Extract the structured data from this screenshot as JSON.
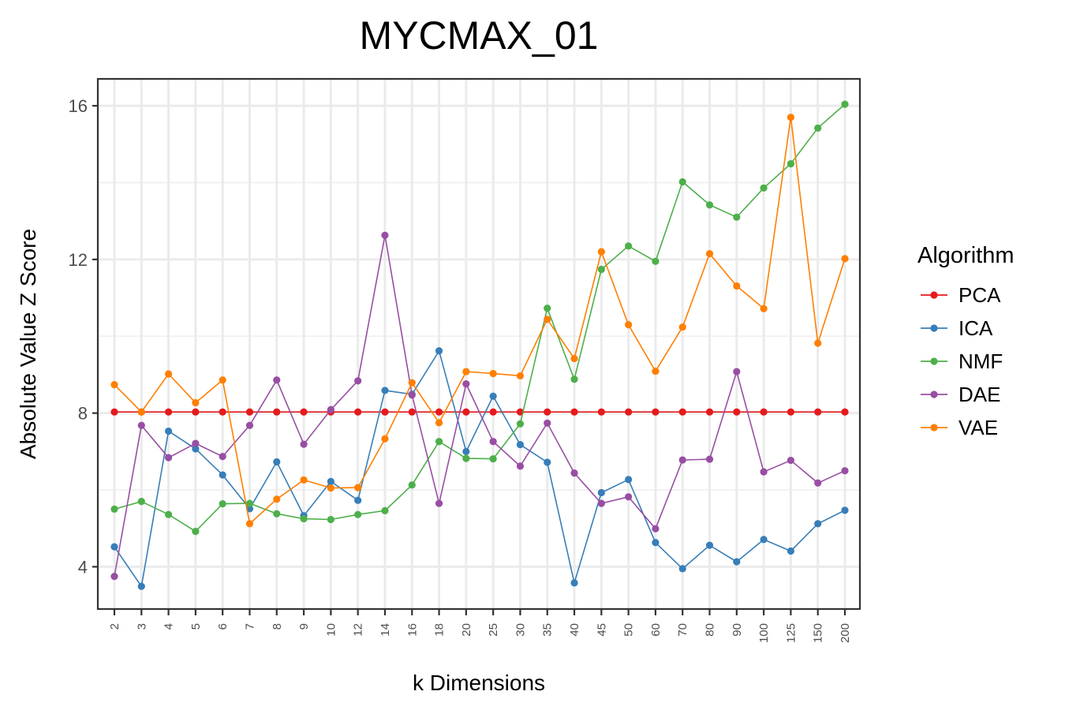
{
  "chart_data": {
    "type": "line",
    "title": "MYCMAX_01",
    "xlabel": "k Dimensions",
    "ylabel": "Absolute Value Z Score",
    "categories": [
      "2",
      "3",
      "4",
      "5",
      "6",
      "7",
      "8",
      "9",
      "10",
      "12",
      "14",
      "16",
      "18",
      "20",
      "25",
      "30",
      "35",
      "40",
      "45",
      "50",
      "60",
      "70",
      "80",
      "90",
      "100",
      "125",
      "150",
      "200"
    ],
    "ylim": [
      2.9,
      16.7
    ],
    "yticks": [
      4,
      8,
      12,
      16
    ],
    "grid": true,
    "legend": {
      "title": "Algorithm",
      "position": "right"
    },
    "series": [
      {
        "name": "PCA",
        "color": "#E41A1C",
        "values": [
          8.03,
          8.03,
          8.03,
          8.03,
          8.03,
          8.03,
          8.03,
          8.03,
          8.03,
          8.03,
          8.03,
          8.03,
          8.03,
          8.03,
          8.03,
          8.03,
          8.03,
          8.03,
          8.03,
          8.03,
          8.03,
          8.03,
          8.03,
          8.03,
          8.03,
          8.03,
          8.03,
          8.03
        ]
      },
      {
        "name": "ICA",
        "color": "#377EB8",
        "values": [
          4.52,
          3.49,
          7.53,
          7.07,
          6.39,
          5.51,
          6.73,
          5.33,
          6.22,
          5.73,
          8.59,
          8.49,
          9.62,
          7.0,
          8.44,
          7.18,
          6.72,
          3.58,
          5.93,
          6.27,
          4.63,
          3.95,
          4.56,
          4.13,
          4.71,
          4.41,
          5.12,
          5.47
        ]
      },
      {
        "name": "NMF",
        "color": "#4DAF4A",
        "values": [
          5.5,
          5.7,
          5.36,
          4.92,
          5.64,
          5.65,
          5.38,
          5.25,
          5.23,
          5.36,
          5.46,
          6.13,
          7.26,
          6.82,
          6.81,
          7.72,
          10.73,
          8.88,
          11.74,
          12.35,
          11.95,
          14.02,
          13.42,
          13.1,
          13.86,
          14.49,
          15.42,
          16.04
        ]
      },
      {
        "name": "DAE",
        "color": "#984EA3",
        "values": [
          3.75,
          7.68,
          6.84,
          7.21,
          6.87,
          7.68,
          8.86,
          7.19,
          8.09,
          8.84,
          12.63,
          8.47,
          5.65,
          8.76,
          7.26,
          6.62,
          7.74,
          6.44,
          5.65,
          5.82,
          4.99,
          6.78,
          6.8,
          9.08,
          6.47,
          6.77,
          6.18,
          6.5
        ]
      },
      {
        "name": "VAE",
        "color": "#FF7F00",
        "values": [
          8.74,
          8.03,
          9.02,
          8.27,
          8.86,
          5.12,
          5.76,
          6.26,
          6.05,
          6.06,
          7.33,
          8.79,
          7.75,
          9.08,
          9.03,
          8.97,
          10.44,
          9.42,
          12.2,
          10.3,
          9.09,
          10.24,
          12.15,
          11.31,
          10.72,
          15.7,
          9.82,
          12.02
        ]
      }
    ]
  }
}
